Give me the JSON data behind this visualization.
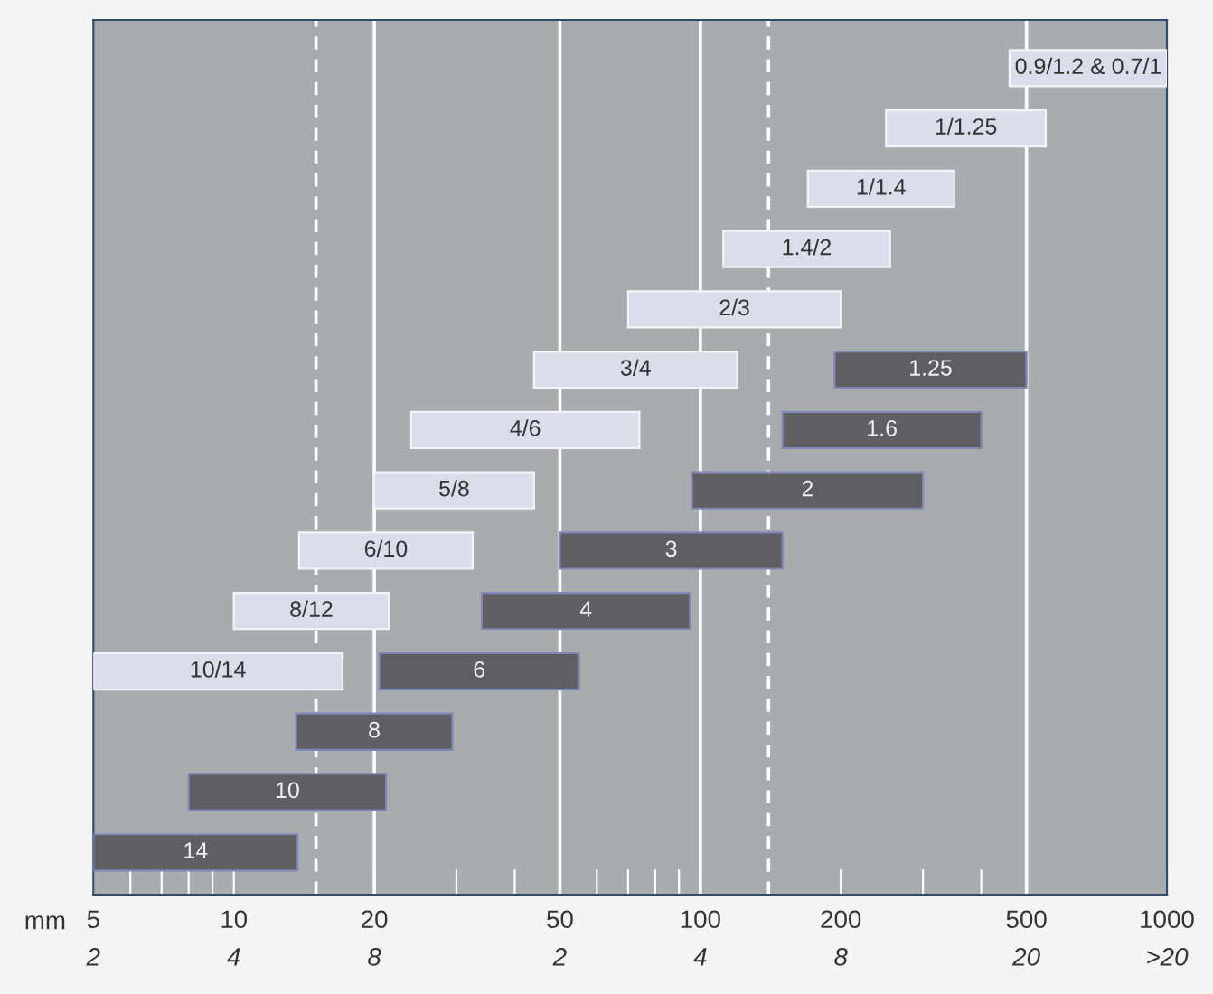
{
  "chart_data": {
    "type": "bar",
    "orientation": "horizontal",
    "log": "x",
    "categories": [
      null,
      null,
      null,
      null,
      null,
      null,
      null,
      null,
      null,
      null,
      null,
      null,
      null,
      null
    ],
    "series": [
      {
        "name": "0.9/1.2 & 0.7/1",
        "color": "#dcdcea",
        "base": [
          460,
          null,
          null,
          null,
          null,
          null,
          null,
          null,
          null,
          null,
          null,
          null,
          null,
          null
        ],
        "values": [
          540,
          null,
          null,
          null,
          null,
          null,
          null,
          null,
          null,
          null,
          null,
          null,
          null,
          null
        ]
      },
      {
        "name": "1/1.25",
        "color": "#dcdcea",
        "base": [
          null,
          250,
          null,
          null,
          null,
          null,
          null,
          null,
          null,
          null,
          null,
          null,
          null,
          null
        ],
        "values": [
          null,
          300,
          null,
          null,
          null,
          null,
          null,
          null,
          null,
          null,
          null,
          null,
          null,
          null
        ]
      },
      {
        "name": "1/1.4",
        "color": "#dcdcea",
        "base": [
          null,
          null,
          170,
          null,
          null,
          null,
          null,
          null,
          null,
          null,
          null,
          null,
          null,
          null
        ],
        "values": [
          null,
          null,
          180,
          null,
          null,
          null,
          null,
          null,
          null,
          null,
          null,
          null,
          null,
          null
        ]
      },
      {
        "name": "1.4/2",
        "color": "#dcdcea",
        "base": [
          null,
          null,
          null,
          112,
          null,
          null,
          null,
          null,
          null,
          null,
          null,
          null,
          null,
          null
        ],
        "values": [
          null,
          null,
          null,
          143,
          null,
          null,
          null,
          null,
          null,
          null,
          null,
          null,
          null,
          null
        ]
      },
      {
        "name": "2/3",
        "color": "#dcdcea",
        "base": [
          null,
          null,
          null,
          null,
          70,
          null,
          null,
          null,
          null,
          null,
          null,
          null,
          null,
          null
        ],
        "values": [
          null,
          null,
          null,
          null,
          130,
          null,
          null,
          null,
          null,
          null,
          null,
          null,
          null,
          null
        ]
      },
      {
        "name": "3/4",
        "color": "#dcdcea",
        "base": [
          null,
          null,
          null,
          null,
          null,
          44,
          null,
          null,
          null,
          null,
          null,
          null,
          null,
          null
        ],
        "values": [
          null,
          null,
          null,
          null,
          null,
          76,
          null,
          null,
          null,
          null,
          null,
          null,
          null,
          null
        ]
      },
      {
        "name": "4/6",
        "color": "#dcdcea",
        "base": [
          null,
          null,
          null,
          null,
          null,
          null,
          24,
          null,
          null,
          null,
          null,
          null,
          null,
          null
        ],
        "values": [
          null,
          null,
          null,
          null,
          null,
          null,
          50,
          null,
          null,
          null,
          null,
          null,
          null,
          null
        ]
      },
      {
        "name": "5/8",
        "color": "#dcdcea",
        "base": [
          null,
          null,
          null,
          null,
          null,
          null,
          null,
          20,
          null,
          null,
          null,
          null,
          null,
          null
        ],
        "values": [
          null,
          null,
          null,
          null,
          null,
          null,
          null,
          24,
          null,
          null,
          null,
          null,
          null,
          null
        ]
      },
      {
        "name": "6/10",
        "color": "#dcdcea",
        "base": [
          null,
          null,
          null,
          null,
          null,
          null,
          null,
          null,
          13.8,
          null,
          null,
          null,
          null,
          null
        ],
        "values": [
          null,
          null,
          null,
          null,
          null,
          null,
          null,
          null,
          18.7,
          null,
          null,
          null,
          null,
          null
        ]
      },
      {
        "name": "8/12",
        "color": "#dcdcea",
        "base": [
          null,
          null,
          null,
          null,
          null,
          null,
          null,
          null,
          null,
          10,
          null,
          null,
          null,
          null
        ],
        "values": [
          null,
          null,
          null,
          null,
          null,
          null,
          null,
          null,
          null,
          11.5,
          null,
          null,
          null,
          null
        ]
      },
      {
        "name": "10/14",
        "color": "#dcdcea",
        "base": [
          null,
          null,
          null,
          null,
          null,
          null,
          null,
          null,
          null,
          null,
          5,
          null,
          null,
          null
        ],
        "values": [
          null,
          null,
          null,
          null,
          null,
          null,
          null,
          null,
          null,
          null,
          12.1,
          null,
          null,
          null
        ]
      },
      {
        "name": "1.25",
        "color": "#5f5f61",
        "base": [
          null,
          null,
          null,
          null,
          null,
          194,
          null,
          null,
          null,
          null,
          null,
          null,
          null,
          null
        ],
        "values": [
          null,
          null,
          null,
          null,
          null,
          306,
          null,
          null,
          null,
          null,
          null,
          null,
          null,
          null
        ]
      },
      {
        "name": "1.6",
        "color": "#5f5f61",
        "base": [
          null,
          null,
          null,
          null,
          null,
          null,
          150,
          null,
          null,
          null,
          null,
          null,
          null,
          null
        ],
        "values": [
          null,
          null,
          null,
          null,
          null,
          null,
          250,
          null,
          null,
          null,
          null,
          null,
          null,
          null
        ]
      },
      {
        "name": "2",
        "color": "#5f5f61",
        "base": [
          null,
          null,
          null,
          null,
          null,
          null,
          null,
          96,
          null,
          null,
          null,
          null,
          null,
          null
        ],
        "values": [
          null,
          null,
          null,
          null,
          null,
          null,
          null,
          204,
          null,
          null,
          null,
          null,
          null,
          null
        ]
      },
      {
        "name": "3",
        "color": "#5f5f61",
        "base": [
          null,
          null,
          null,
          null,
          null,
          null,
          null,
          null,
          50,
          null,
          null,
          null,
          null,
          null
        ],
        "values": [
          null,
          null,
          null,
          null,
          null,
          null,
          null,
          null,
          100,
          null,
          null,
          null,
          null,
          null
        ]
      },
      {
        "name": "4",
        "color": "#5f5f61",
        "base": [
          null,
          null,
          null,
          null,
          null,
          null,
          null,
          null,
          null,
          34,
          null,
          null,
          null,
          null
        ],
        "values": [
          null,
          null,
          null,
          null,
          null,
          null,
          null,
          null,
          null,
          61,
          null,
          null,
          null,
          null
        ]
      },
      {
        "name": "6",
        "color": "#5f5f61",
        "base": [
          null,
          null,
          null,
          null,
          null,
          null,
          null,
          null,
          null,
          null,
          20.5,
          null,
          null,
          null
        ],
        "values": [
          null,
          null,
          null,
          null,
          null,
          null,
          null,
          null,
          null,
          null,
          34.5,
          null,
          null,
          null
        ]
      },
      {
        "name": "8",
        "color": "#5f5f61",
        "base": [
          null,
          null,
          null,
          null,
          null,
          null,
          null,
          null,
          null,
          null,
          null,
          13.6,
          null,
          null
        ],
        "values": [
          null,
          null,
          null,
          null,
          null,
          null,
          null,
          null,
          null,
          null,
          null,
          15.8,
          null,
          null
        ]
      },
      {
        "name": "10",
        "color": "#5f5f61",
        "base": [
          null,
          null,
          null,
          null,
          null,
          null,
          null,
          null,
          null,
          null,
          null,
          null,
          8,
          null
        ],
        "values": [
          null,
          null,
          null,
          null,
          null,
          null,
          null,
          null,
          null,
          null,
          null,
          null,
          13.2,
          null
        ]
      },
      {
        "name": "14",
        "color": "#5f5f61",
        "base": [
          null,
          null,
          null,
          null,
          null,
          null,
          null,
          null,
          null,
          null,
          null,
          null,
          null,
          5
        ],
        "values": [
          null,
          null,
          null,
          null,
          null,
          null,
          null,
          null,
          null,
          null,
          null,
          null,
          null,
          8.7
        ]
      }
    ],
    "xlabel": "mm",
    "xlim": [
      5,
      1000
    ],
    "xticks": [
      5,
      {
        "value": 6,
        "label": null
      },
      {
        "value": 7,
        "label": null
      },
      {
        "value": 8,
        "label": null
      },
      {
        "value": 9,
        "label": null
      },
      10,
      20,
      {
        "value": 30,
        "label": null
      },
      {
        "value": 40,
        "label": null
      },
      50,
      {
        "value": 60,
        "label": null
      },
      {
        "value": 70,
        "label": null
      },
      {
        "value": 80,
        "label": null
      },
      {
        "value": 90,
        "label": null
      },
      100,
      200,
      {
        "value": 300,
        "label": null
      },
      {
        "value": 400,
        "label": null
      },
      500,
      1000
    ],
    "annotations": [
      "2",
      "4",
      "8",
      "2",
      "4",
      "8",
      "20",
      ">20"
    ],
    "ref_lines": [
      {
        "axis": "x",
        "value": 20,
        "color": "#ffffff",
        "line_style": "solid"
      },
      {
        "axis": "x",
        "value": 50,
        "color": "#ffffff",
        "line_style": "solid"
      },
      {
        "axis": "x",
        "value": 100,
        "color": "#ffffff",
        "line_style": "solid"
      },
      {
        "axis": "x",
        "value": 500,
        "color": "#ffffff",
        "line_style": "solid"
      },
      {
        "axis": "x",
        "value": 15,
        "color": "#ffffff",
        "line_style": "dashed"
      },
      {
        "axis": "x",
        "value": 140,
        "color": "#ffffff",
        "line_style": "dashed"
      }
    ],
    "grid": false,
    "legend": false
  }
}
